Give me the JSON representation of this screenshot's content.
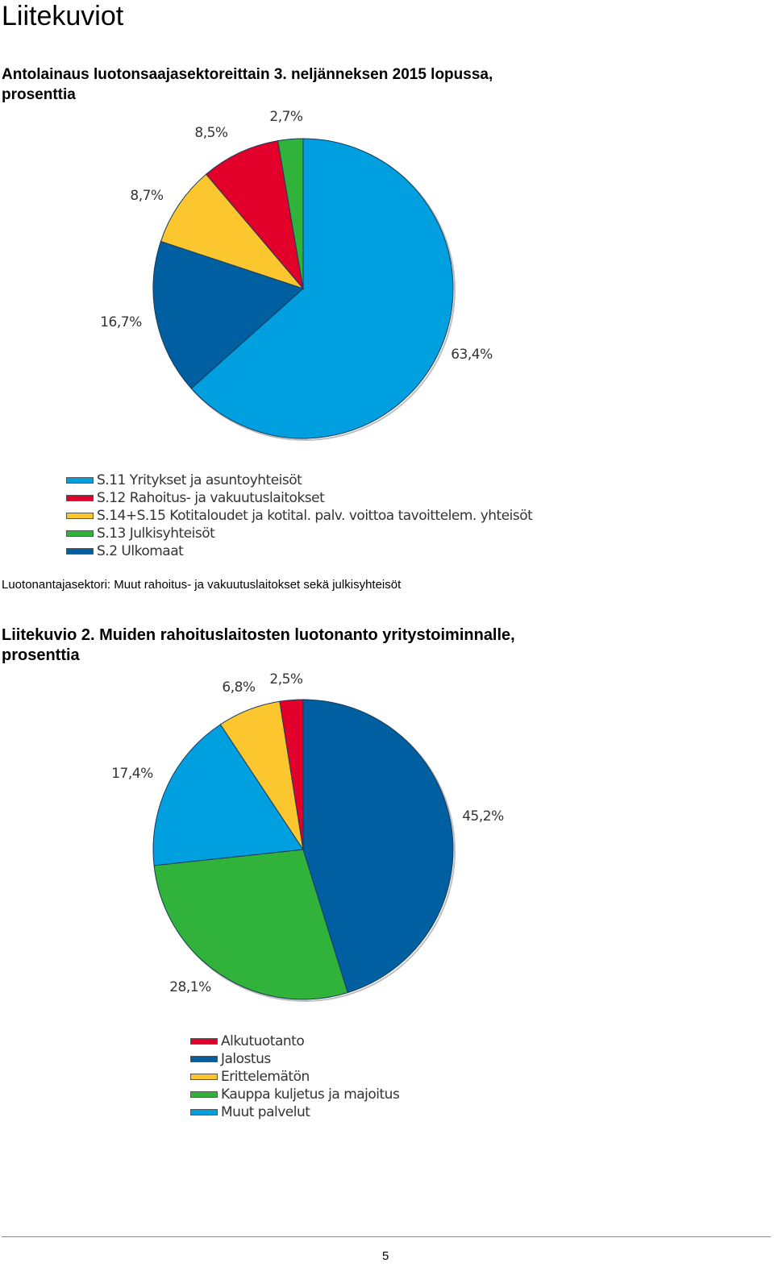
{
  "page": {
    "heading": "Liitekuviot",
    "page_number": "5"
  },
  "chart1": {
    "title": "Antolainaus luotonsaajasektoreittain 3. neljänneksen 2015 lopussa, prosenttia",
    "caption": "Luotonantajasektori: Muut rahoitus- ja vakuutuslaitokset sekä julkisyhteisöt"
  },
  "chart2": {
    "title": "Liitekuvio 2. Muiden rahoituslaitosten luotonanto yritystoiminnalle, prosenttia"
  },
  "chart_data": [
    {
      "type": "pie",
      "title": "Antolainaus luotonsaajasektoreittain 3. neljänneksen 2015 lopussa, prosenttia",
      "slices": [
        {
          "name": "S.11 Yritykset ja asuntoyhteisöt",
          "value": 63.4,
          "label": "63,4%",
          "color": "#009fdf"
        },
        {
          "name": "S.2 Ulkomaat",
          "value": 16.7,
          "label": "16,7%",
          "color": "#005fa0"
        },
        {
          "name": "S.14+S.15 Kotitaloudet ja kotital. palv. voittoa tavoittelem. yhteisöt",
          "value": 8.7,
          "label": "8,7%",
          "color": "#fcc62e"
        },
        {
          "name": "S.12 Rahoitus- ja vakuutuslaitokset",
          "value": 8.5,
          "label": "8,5%",
          "color": "#e2002a"
        },
        {
          "name": "S.13 Julkisyhteisöt",
          "value": 2.7,
          "label": "2,7%",
          "color": "#30b23b"
        }
      ],
      "legend": [
        {
          "label": "S.11 Yritykset ja asuntoyhteisöt",
          "color": "#009fdf"
        },
        {
          "label": "S.12 Rahoitus- ja vakuutuslaitokset",
          "color": "#e2002a"
        },
        {
          "label": "S.14+S.15 Kotitaloudet ja kotital. palv. voittoa tavoittelem. yhteisöt",
          "color": "#fcc62e"
        },
        {
          "label": "S.13 Julkisyhteisöt",
          "color": "#30b23b"
        },
        {
          "label": "S.2 Ulkomaat",
          "color": "#005fa0"
        }
      ],
      "legend_position": "bottom"
    },
    {
      "type": "pie",
      "title": "Liitekuvio 2. Muiden rahoituslaitosten luotonanto yritystoiminnalle, prosenttia",
      "slices": [
        {
          "name": "Jalostus",
          "value": 45.2,
          "label": "45,2%",
          "color": "#005fa0"
        },
        {
          "name": "Kauppa kuljetus ja majoitus",
          "value": 28.1,
          "label": "28,1%",
          "color": "#30b23b"
        },
        {
          "name": "Muut palvelut",
          "value": 17.4,
          "label": "17,4%",
          "color": "#009fdf"
        },
        {
          "name": "Erittelemätön",
          "value": 6.8,
          "label": "6,8%",
          "color": "#fcc62e"
        },
        {
          "name": "Alkutuotanto",
          "value": 2.5,
          "label": "2,5%",
          "color": "#e2002a"
        }
      ],
      "legend": [
        {
          "label": "Alkutuotanto",
          "color": "#e2002a"
        },
        {
          "label": "Jalostus",
          "color": "#005fa0"
        },
        {
          "label": "Erittelemätön",
          "color": "#fcc62e"
        },
        {
          "label": "Kauppa kuljetus ja majoitus",
          "color": "#30b23b"
        },
        {
          "label": "Muut palvelut",
          "color": "#009fdf"
        }
      ],
      "legend_position": "bottom"
    }
  ]
}
